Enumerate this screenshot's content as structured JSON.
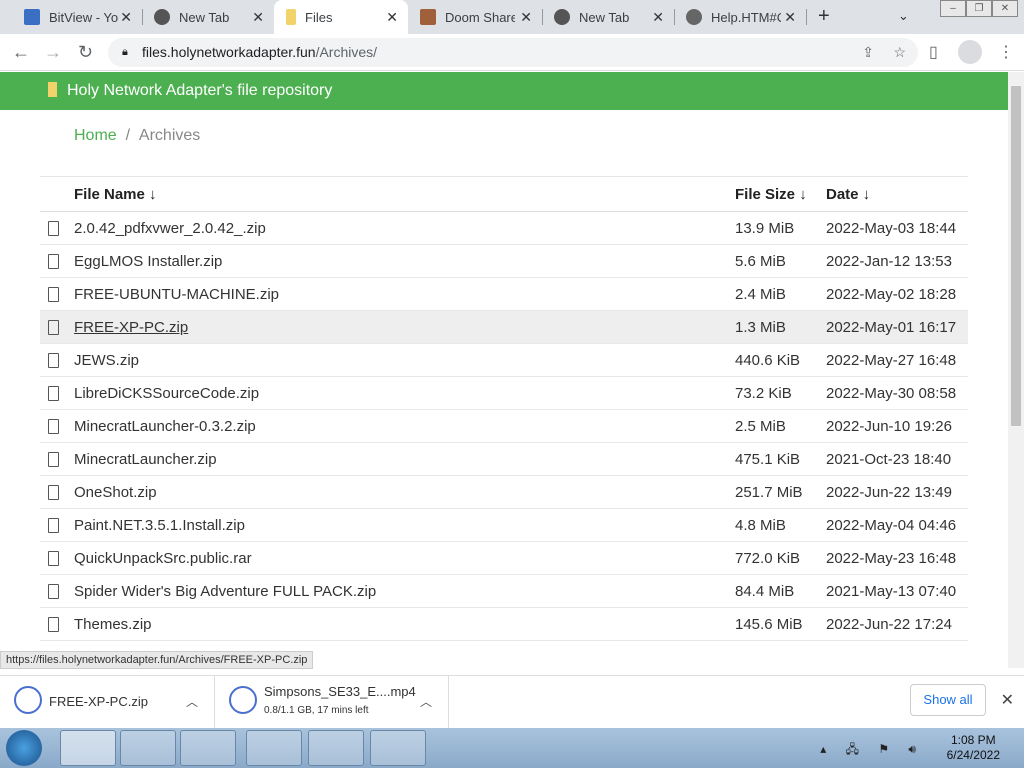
{
  "tabs": [
    {
      "title": "BitView - You",
      "icon": "bitview-icon",
      "active": false
    },
    {
      "title": "New Tab",
      "icon": "chrome-icon",
      "active": false
    },
    {
      "title": "Files",
      "icon": "folder-icon",
      "active": true
    },
    {
      "title": "Doom Share",
      "icon": "doom-icon",
      "active": false
    },
    {
      "title": "New Tab",
      "icon": "chrome-icon",
      "active": false
    },
    {
      "title": "Help.HTM#C",
      "icon": "globe-icon",
      "active": false
    }
  ],
  "address": {
    "host": "files.holynetworkadapter.fun",
    "path": "/Archives/"
  },
  "header": {
    "title": "Holy Network Adapter's file repository"
  },
  "breadcrumb": {
    "home": "Home",
    "sep": "/",
    "current": "Archives"
  },
  "table": {
    "headers": {
      "name": "File Name ↓",
      "size": "File Size ↓",
      "date": "Date ↓"
    },
    "rows": [
      {
        "name": "2.0.42_pdfxvwer_2.0.42_.zip",
        "size": "13.9 MiB",
        "date": "2022-May-03 18:44"
      },
      {
        "name": "EggLMOS Installer.zip",
        "size": "5.6 MiB",
        "date": "2022-Jan-12 13:53"
      },
      {
        "name": "FREE-UBUNTU-MACHINE.zip",
        "size": "2.4 MiB",
        "date": "2022-May-02 18:28"
      },
      {
        "name": "FREE-XP-PC.zip",
        "size": "1.3 MiB",
        "date": "2022-May-01 16:17"
      },
      {
        "name": "JEWS.zip",
        "size": "440.6 KiB",
        "date": "2022-May-27 16:48"
      },
      {
        "name": "LibreDiCKSSourceCode.zip",
        "size": "73.2 KiB",
        "date": "2022-May-30 08:58"
      },
      {
        "name": "MinecratLauncher-0.3.2.zip",
        "size": "2.5 MiB",
        "date": "2022-Jun-10 19:26"
      },
      {
        "name": "MinecratLauncher.zip",
        "size": "475.1 KiB",
        "date": "2021-Oct-23 18:40"
      },
      {
        "name": "OneShot.zip",
        "size": "251.7 MiB",
        "date": "2022-Jun-22 13:49"
      },
      {
        "name": "Paint.NET.3.5.1.Install.zip",
        "size": "4.8 MiB",
        "date": "2022-May-04 04:46"
      },
      {
        "name": "QuickUnpackSrc.public.rar",
        "size": "772.0 KiB",
        "date": "2022-May-23 16:48"
      },
      {
        "name": "Spider Wider's Big Adventure FULL PACK.zip",
        "size": "84.4 MiB",
        "date": "2021-May-13 07:40"
      },
      {
        "name": "Themes.zip",
        "size": "145.6 MiB",
        "date": "2022-Jun-22 17:24"
      }
    ]
  },
  "status_url": "https://files.holynetworkadapter.fun/Archives/FREE-XP-PC.zip",
  "downloads": [
    {
      "name": "FREE-XP-PC.zip",
      "detail": ""
    },
    {
      "name": "Simpsons_SE33_E....mp4",
      "detail": "0.8/1.1 GB, 17 mins left"
    }
  ],
  "show_all": "Show all",
  "clock": {
    "time": "1:08 PM",
    "date": "6/24/2022"
  }
}
